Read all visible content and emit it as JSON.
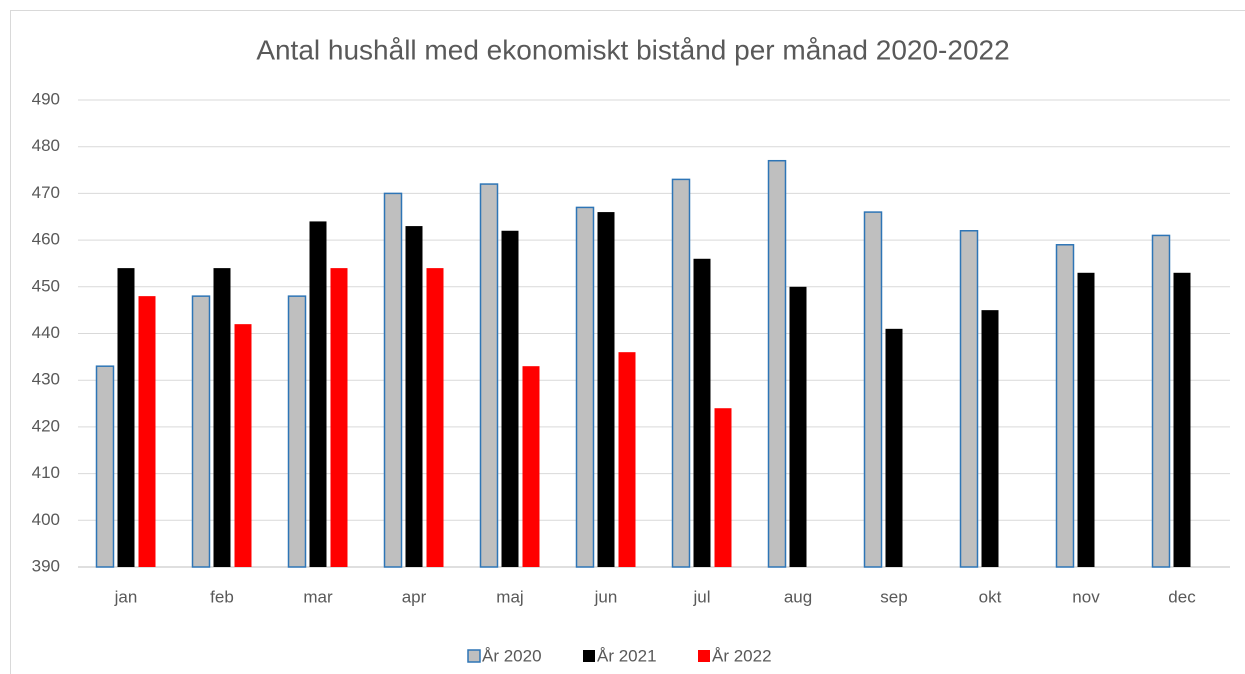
{
  "chart_data": {
    "type": "bar",
    "title": "Antal hushåll med ekonomiskt bistånd per månad 2020-2022",
    "categories": [
      "jan",
      "feb",
      "mar",
      "apr",
      "maj",
      "jun",
      "jul",
      "aug",
      "sep",
      "okt",
      "nov",
      "dec"
    ],
    "series": [
      {
        "name": "År 2020",
        "color": "#bfbfbf",
        "stroke": "#2e75b6",
        "values": [
          433,
          448,
          448,
          470,
          472,
          467,
          473,
          477,
          466,
          462,
          459,
          461
        ]
      },
      {
        "name": "År 2021",
        "color": "#000000",
        "values": [
          454,
          454,
          464,
          463,
          462,
          466,
          456,
          450,
          441,
          445,
          453,
          453
        ]
      },
      {
        "name": "År 2022",
        "color": "#ff0000",
        "values": [
          448,
          442,
          454,
          454,
          433,
          436,
          424,
          null,
          null,
          null,
          null,
          null
        ]
      }
    ],
    "ylim": [
      390,
      490
    ],
    "yticks": [
      390,
      400,
      410,
      420,
      430,
      440,
      450,
      460,
      470,
      480,
      490
    ],
    "grid": true,
    "legend": "bottom"
  }
}
